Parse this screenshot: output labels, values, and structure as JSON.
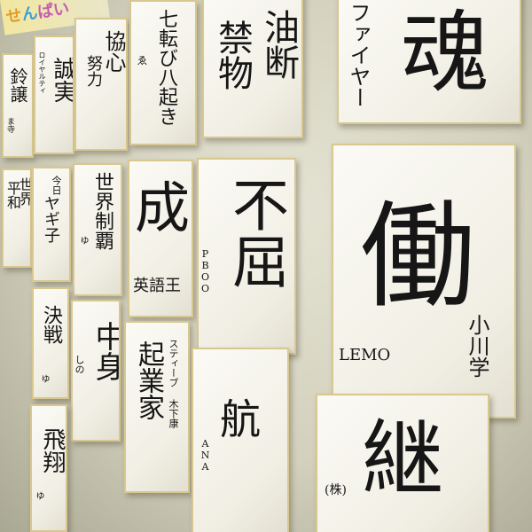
{
  "banner": [
    "せ",
    "ん",
    "ぱい"
  ],
  "boards": {
    "b1": {
      "main": "鈴譲",
      "sub": "ま寺"
    },
    "b2": {
      "main": "誠実",
      "sub": "ロイヤルティ"
    },
    "b3": {
      "main": "協心",
      "sub": "努力"
    },
    "b4": {
      "main": "七転び八起き",
      "sub": "ゑ"
    },
    "b5": {
      "main": "油断",
      "sub": "禁物"
    },
    "b6": {
      "main": "魂",
      "sub": "ファイヤー"
    },
    "b7": {
      "main": "平和",
      "sub": "世界"
    },
    "b8": {
      "main": "ヤギ子",
      "sub": "今日"
    },
    "b9": {
      "main": "世界制覇",
      "sub": "ゆ"
    },
    "b10": {
      "main": "成",
      "sub": "英語王"
    },
    "b11": {
      "main": "不屈",
      "sub": "PBOO"
    },
    "b12": {
      "main": "働",
      "sign_left": "LEMO",
      "sign_right": "小川学"
    },
    "b13": {
      "main": "決戦",
      "sub": "ゆ"
    },
    "b14": {
      "main": "中身",
      "sub": "しの"
    },
    "b15": {
      "main": "起業家",
      "sub": "スティーブ 木下康"
    },
    "b16": {
      "main": "航",
      "sub": "ANA"
    },
    "b17": {
      "main": "継",
      "sub": "(株)"
    },
    "b18": {
      "main": "飛翔",
      "sub": "ゆ"
    }
  }
}
